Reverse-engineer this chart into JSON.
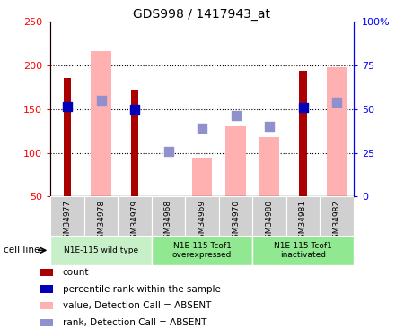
{
  "title": "GDS998 / 1417943_at",
  "samples": [
    "GSM34977",
    "GSM34978",
    "GSM34979",
    "GSM34968",
    "GSM34969",
    "GSM34970",
    "GSM34980",
    "GSM34981",
    "GSM34982"
  ],
  "count_values": [
    186,
    null,
    172,
    null,
    null,
    null,
    null,
    194,
    null
  ],
  "pink_bar_values": [
    null,
    217,
    null,
    null,
    95,
    130,
    118,
    null,
    198
  ],
  "blue_sq_values": [
    153,
    160,
    150,
    102,
    128,
    143,
    130,
    152,
    158
  ],
  "blue_sq_dark": [
    true,
    false,
    true,
    false,
    false,
    false,
    false,
    true,
    false
  ],
  "ylim_left": [
    50,
    250
  ],
  "ylim_right": [
    0,
    100
  ],
  "yticks_left": [
    50,
    100,
    150,
    200,
    250
  ],
  "ytick_labels_left": [
    "50",
    "100",
    "150",
    "200",
    "250"
  ],
  "yticks_right": [
    0,
    25,
    50,
    75,
    100
  ],
  "ytick_labels_right": [
    "0",
    "25",
    "50",
    "75",
    "100%"
  ],
  "groups": [
    {
      "label": "N1E-115 wild type",
      "indices": [
        0,
        1,
        2
      ],
      "color": "#c8f0c8"
    },
    {
      "label": "N1E-115 Tcof1\noverexpressed",
      "indices": [
        3,
        4,
        5
      ],
      "color": "#90e890"
    },
    {
      "label": "N1E-115 Tcof1\ninactivated",
      "indices": [
        6,
        7,
        8
      ],
      "color": "#90e890"
    }
  ],
  "count_color": "#aa0000",
  "pink_color": "#ffb0b0",
  "blue_dark_color": "#0000bb",
  "blue_light_color": "#9090cc",
  "legend_items": [
    {
      "label": "count",
      "color": "#aa0000"
    },
    {
      "label": "percentile rank within the sample",
      "color": "#0000bb"
    },
    {
      "label": "value, Detection Call = ABSENT",
      "color": "#ffb0b0"
    },
    {
      "label": "rank, Detection Call = ABSENT",
      "color": "#9090cc"
    }
  ],
  "sample_label_bg": "#d0d0d0",
  "grid_dotted_vals": [
    100,
    150,
    200
  ]
}
